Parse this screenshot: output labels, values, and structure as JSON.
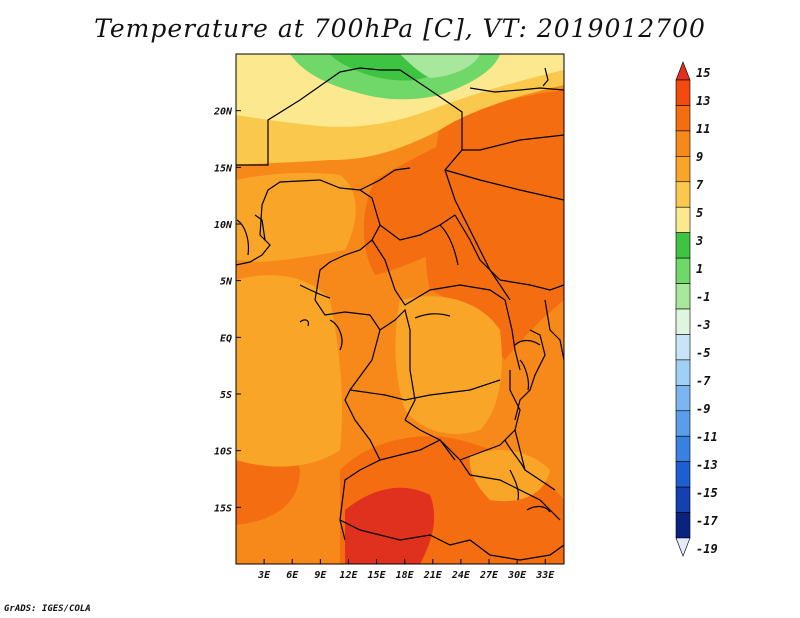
{
  "title": "Temperature at 700hPa [C], VT: 2019012700",
  "footer": "GrADS: IGES/COLA",
  "map": {
    "lon_range": [
      0,
      35
    ],
    "lat_range": [
      -20,
      25
    ],
    "x_ticks": [
      "3E",
      "6E",
      "9E",
      "12E",
      "15E",
      "18E",
      "21E",
      "24E",
      "27E",
      "30E",
      "33E"
    ],
    "x_tick_values": [
      3,
      6,
      9,
      12,
      15,
      18,
      21,
      24,
      27,
      30,
      33
    ],
    "y_ticks": [
      "20N",
      "15N",
      "10N",
      "5N",
      "EQ",
      "5S",
      "10S",
      "15S"
    ],
    "y_tick_values": [
      20,
      15,
      10,
      5,
      0,
      -5,
      -10,
      -15
    ]
  },
  "colorbar": {
    "labels": [
      "15",
      "13",
      "11",
      "9",
      "7",
      "5",
      "3",
      "1",
      "-1",
      "-3",
      "-5",
      "-7",
      "-9",
      "-11",
      "-13",
      "-15",
      "-17",
      "-19"
    ],
    "colors": [
      "#e0301e",
      "#f24a0f",
      "#f46d11",
      "#f7891a",
      "#f9a628",
      "#fac84c",
      "#fce88f",
      "#3ec342",
      "#6fd868",
      "#a8e89c",
      "#dff5df",
      "#c8e5f7",
      "#a0d0f5",
      "#7bb6f0",
      "#5a9de9",
      "#3a80e0",
      "#1d5fd0",
      "#1440b0",
      "#0a2380",
      "#e6ebfc"
    ]
  }
}
